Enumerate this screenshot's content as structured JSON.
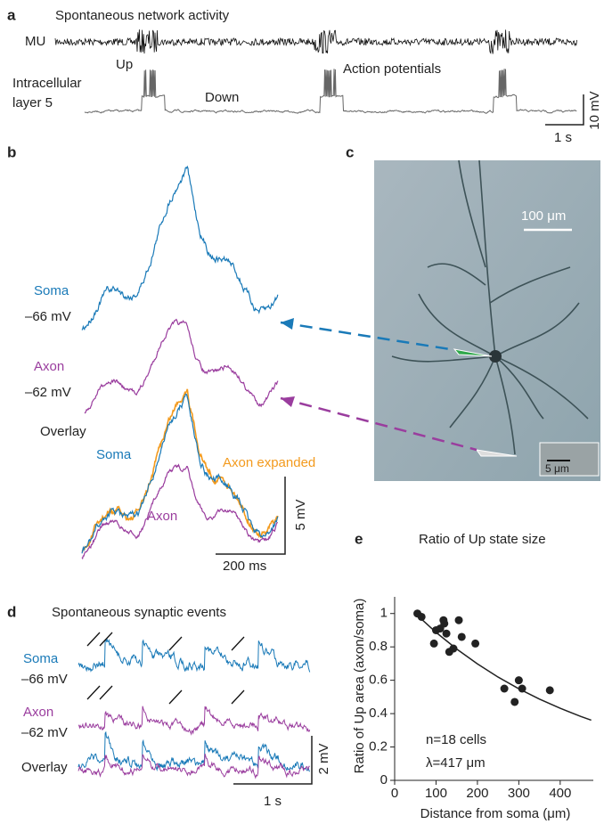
{
  "panels": {
    "a": {
      "label": "a",
      "title": "Spontaneous network activity",
      "mu": "MU",
      "intracellular": "Intracellular",
      "layer": "layer 5",
      "up": "Up",
      "down": "Down",
      "action_potentials": "Action potentials",
      "scale_v": "10 mV",
      "scale_t": "1 s"
    },
    "b": {
      "label": "b",
      "soma": "Soma",
      "soma_mv": "–66 mV",
      "axon": "Axon",
      "axon_mv": "–62 mV",
      "overlay": "Overlay",
      "overlay_soma": "Soma",
      "axon_expanded": "Axon expanded",
      "overlay_axon": "Axon",
      "scale_v": "5 mV",
      "scale_t": "200 ms"
    },
    "c": {
      "label": "c",
      "scale": "100 μm",
      "inset_scale": "5 μm"
    },
    "d": {
      "label": "d",
      "title": "Spontaneous synaptic events",
      "soma": "Soma",
      "soma_mv": "–66 mV",
      "axon": "Axon",
      "axon_mv": "–62 mV",
      "overlay": "Overlay",
      "scale_v": "2 mV",
      "scale_t": "1 s"
    }
  },
  "chart_data": {
    "type": "scatter",
    "label": "e",
    "title": "Ratio of Up state size",
    "x_label": "Distance from soma (μm)",
    "y_label": "Ratio of Up area (axon/soma)",
    "annotations": [
      "n=18 cells",
      "λ=417 μm"
    ],
    "xlim": [
      0,
      480
    ],
    "xticks": [
      0,
      100,
      200,
      300,
      400
    ],
    "ylim": [
      0,
      1.1
    ],
    "yticks": [
      0,
      0.2,
      0.4,
      0.6,
      0.8,
      1
    ],
    "series": [
      {
        "type": "scatter",
        "color": "#222",
        "x": [
          55,
          65,
          95,
          100,
          110,
          118,
          120,
          125,
          132,
          142,
          155,
          162,
          195,
          265,
          290,
          300,
          308,
          375
        ],
        "values": [
          1.0,
          0.98,
          0.82,
          0.9,
          0.91,
          0.96,
          0.94,
          0.88,
          0.77,
          0.79,
          0.96,
          0.86,
          0.82,
          0.55,
          0.47,
          0.6,
          0.55,
          0.54
        ]
      },
      {
        "type": "line",
        "color": "#222",
        "x": [
          50,
          100,
          150,
          200,
          250,
          300,
          350,
          400,
          450,
          475
        ],
        "values": [
          1.0,
          0.887,
          0.787,
          0.698,
          0.619,
          0.549,
          0.487,
          0.432,
          0.383,
          0.361
        ]
      }
    ]
  }
}
